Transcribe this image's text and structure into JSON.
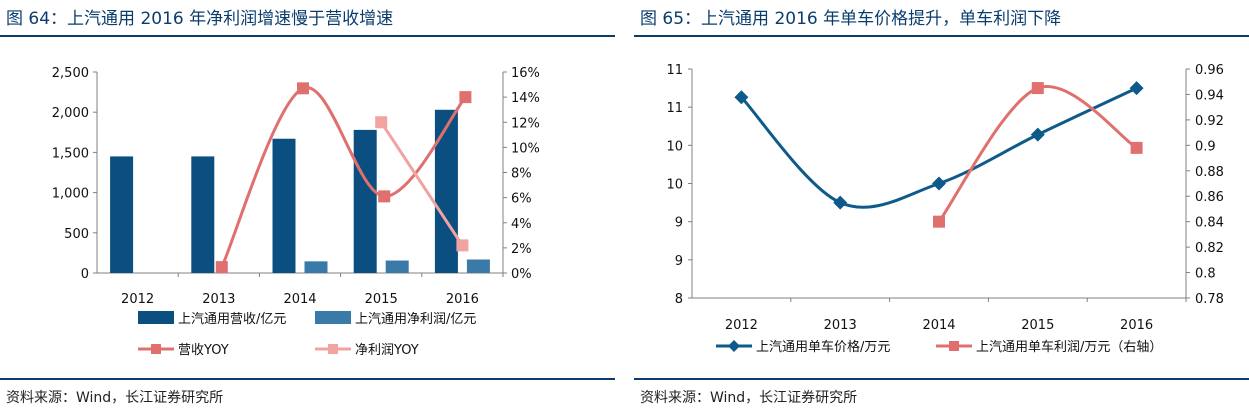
{
  "left_panel": {
    "title": "图 64：上汽通用 2016 年净利润增速慢于营收增速",
    "source": "资料来源：Wind，长江证券研究所",
    "colors": {
      "revenue_bar": "#0b4f80",
      "profit_bar": "#3a7aa8",
      "revenue_yoy": "#e0706e",
      "profit_yoy": "#f0a3a1",
      "title": "#0a3d6e"
    }
  },
  "right_panel": {
    "title": "图 65：上汽通用 2016 年单车价格提升，单车利润下降",
    "source": "资料来源：Wind，长江证券研究所",
    "colors": {
      "price": "#0e5a8a",
      "profit": "#e0706e",
      "title": "#0a3d6e"
    }
  },
  "chart_data": [
    {
      "type": "bar",
      "categories": [
        "2012",
        "2013",
        "2014",
        "2015",
        "2016"
      ],
      "series": [
        {
          "name": "上汽通用营收/亿元",
          "type": "bar",
          "axis": "left",
          "values": [
            1450,
            1450,
            1670,
            1780,
            2030
          ]
        },
        {
          "name": "上汽通用净利润/亿元",
          "type": "bar",
          "axis": "left",
          "values": [
            null,
            null,
            145,
            155,
            168
          ]
        },
        {
          "name": "营收YOY",
          "type": "line",
          "axis": "right",
          "values": [
            null,
            0.0047,
            0.147,
            0.061,
            0.14
          ]
        },
        {
          "name": "净利润YOY",
          "type": "line",
          "axis": "right",
          "values": [
            null,
            null,
            null,
            0.12,
            0.022
          ]
        }
      ],
      "yleft": {
        "min": 0,
        "max": 2500,
        "ticks": [
          "0",
          "500",
          "1,000",
          "1,500",
          "2,000",
          "2,500"
        ]
      },
      "yright": {
        "min": 0,
        "max": 0.16,
        "ticks": [
          "0%",
          "2%",
          "4%",
          "6%",
          "8%",
          "10%",
          "12%",
          "14%",
          "16%"
        ]
      },
      "grid": false,
      "legend": "bottom"
    },
    {
      "type": "line",
      "categories": [
        "2012",
        "2013",
        "2014",
        "2015",
        "2016"
      ],
      "series": [
        {
          "name": "上汽通用单车价格/万元",
          "axis": "left",
          "marker": "diamond",
          "values": [
            10.63,
            9.25,
            9.5,
            10.14,
            10.75
          ]
        },
        {
          "name": "上汽通用单车利润/万元（右轴）",
          "axis": "right",
          "marker": "square",
          "values": [
            null,
            null,
            0.84,
            0.945,
            0.898
          ]
        }
      ],
      "yleft": {
        "min": 8,
        "max": 11,
        "ticks": [
          "8",
          "9",
          "9",
          "10",
          "10",
          "11",
          "11"
        ]
      },
      "yright": {
        "min": 0.78,
        "max": 0.96,
        "ticks": [
          "0.78",
          "0.8",
          "0.82",
          "0.84",
          "0.86",
          "0.88",
          "0.9",
          "0.92",
          "0.94",
          "0.96"
        ]
      },
      "grid": false,
      "legend": "bottom"
    }
  ]
}
